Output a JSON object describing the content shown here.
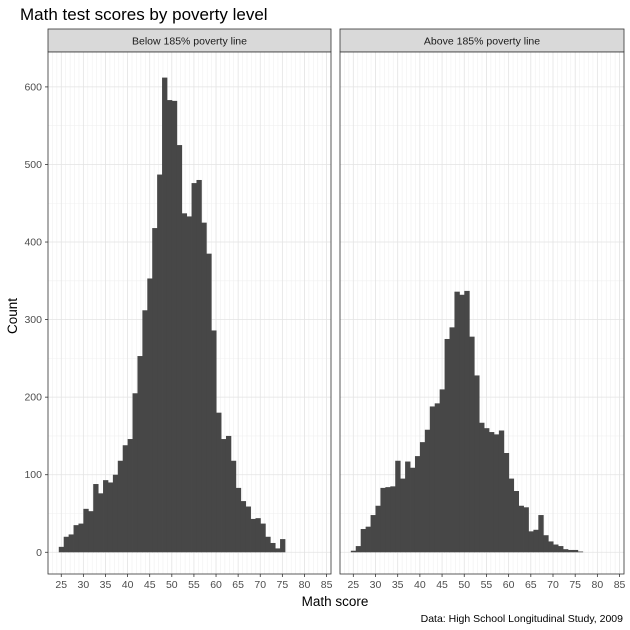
{
  "chart_data": {
    "type": "bar",
    "title": "Math test scores by poverty level",
    "xlabel": "Math score",
    "ylabel": "Count",
    "caption": "Data: High School Longitudinal Study, 2009",
    "xlim": [
      22,
      86
    ],
    "ylim": [
      -28,
      645
    ],
    "x_ticks": [
      25,
      30,
      35,
      40,
      45,
      50,
      55,
      60,
      65,
      70,
      75,
      80,
      85
    ],
    "y_ticks": [
      0,
      100,
      200,
      300,
      400,
      500,
      600
    ],
    "bin_start": 24.44,
    "bin_width": 1.112,
    "grid": true,
    "theme": "bw",
    "bar_color": "#474747",
    "facets": [
      {
        "label": "Below 185% poverty line",
        "values": [
          7,
          20,
          23,
          35,
          37,
          56,
          53,
          88,
          76,
          93,
          90,
          100,
          118,
          138,
          146,
          205,
          253,
          312,
          353,
          418,
          487,
          612,
          583,
          582,
          525,
          437,
          433,
          476,
          480,
          425,
          385,
          286,
          180,
          146,
          150,
          118,
          83,
          66,
          59,
          43,
          44,
          37,
          20,
          12,
          5,
          17
        ]
      },
      {
        "label": "Above 185% poverty line",
        "values": [
          2,
          8,
          30,
          33,
          48,
          60,
          83,
          84,
          85,
          118,
          95,
          117,
          109,
          124,
          142,
          158,
          188,
          192,
          210,
          275,
          290,
          336,
          332,
          337,
          278,
          228,
          167,
          160,
          155,
          152,
          157,
          128,
          95,
          79,
          60,
          58,
          27,
          29,
          48,
          22,
          14,
          10,
          8,
          4,
          3,
          3,
          1
        ]
      }
    ]
  }
}
